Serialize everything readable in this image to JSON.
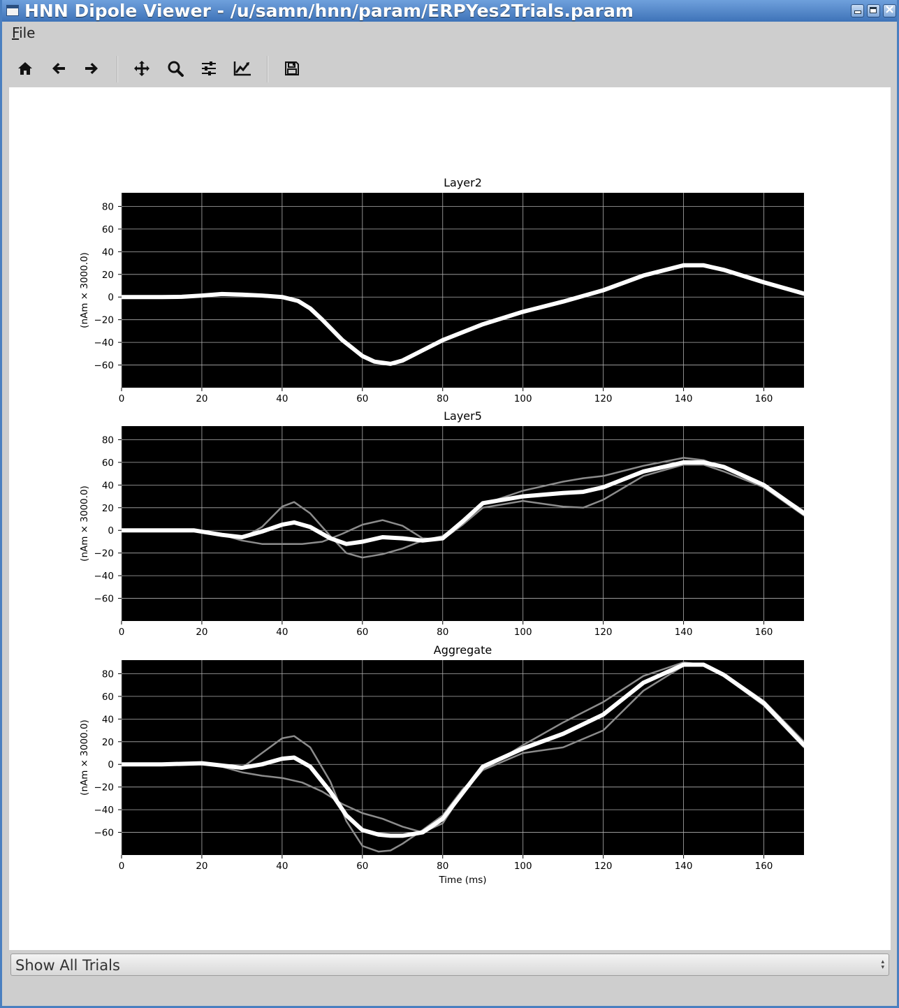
{
  "window": {
    "title": "HNN Dipole Viewer - /u/samn/hnn/param/ERPYes2Trials.param"
  },
  "menu": {
    "file_label": "File"
  },
  "toolbar": {
    "icons": [
      "home-icon",
      "back-arrow-icon",
      "forward-arrow-icon",
      "pan-icon",
      "zoom-icon",
      "configure-subplots-icon",
      "edit-axes-icon",
      "save-icon"
    ]
  },
  "trial_select": {
    "selected": "Show All Trials"
  },
  "chart_data": [
    {
      "type": "line",
      "title": "Layer2",
      "ylabel": "(nAm × 3000.0)",
      "xlabel": "",
      "xlim": [
        0,
        170
      ],
      "ylim": [
        -80,
        92
      ],
      "xticks": [
        0,
        20,
        40,
        60,
        80,
        100,
        120,
        140,
        160
      ],
      "yticks": [
        -60,
        -40,
        -20,
        0,
        20,
        40,
        60,
        80
      ],
      "grid": true,
      "background": "#000000",
      "series": [
        {
          "color": "#ffffff",
          "role": "average",
          "x": [
            0,
            10,
            15,
            20,
            25,
            30,
            35,
            40,
            44,
            47,
            50,
            55,
            60,
            63,
            67,
            70,
            75,
            80,
            90,
            100,
            110,
            115,
            120,
            130,
            140,
            145,
            150,
            160,
            170
          ],
          "y": [
            0,
            0,
            0.2,
            1.3,
            2.7,
            2.2,
            1.3,
            0,
            -3.5,
            -10,
            -20,
            -38,
            -52,
            -57,
            -59,
            -56,
            -47,
            -38,
            -24,
            -13,
            -4,
            1,
            6,
            19,
            28,
            28,
            24,
            13,
            3
          ]
        }
      ]
    },
    {
      "type": "line",
      "title": "Layer5",
      "ylabel": "(nAm × 3000.0)",
      "xlabel": "",
      "xlim": [
        0,
        170
      ],
      "ylim": [
        -80,
        92
      ],
      "xticks": [
        0,
        20,
        40,
        60,
        80,
        100,
        120,
        140,
        160
      ],
      "yticks": [
        -60,
        -40,
        -20,
        0,
        20,
        40,
        60,
        80
      ],
      "grid": true,
      "background": "#000000",
      "series": [
        {
          "color": "#8c8c8c",
          "role": "trial",
          "x": [
            0,
            10,
            18,
            25,
            30,
            35,
            40,
            43,
            47,
            52,
            56,
            60,
            65,
            70,
            75,
            80,
            85,
            90,
            100,
            110,
            115,
            120,
            130,
            140,
            145,
            150,
            160,
            170
          ],
          "y": [
            0,
            0,
            0,
            -4,
            -7,
            3,
            21,
            25,
            15,
            -5,
            -20,
            -24,
            -21,
            -16,
            -9,
            -5,
            8,
            23,
            35,
            43,
            46,
            48,
            57,
            64,
            62,
            55,
            40,
            17
          ]
        },
        {
          "color": "#8c8c8c",
          "role": "trial",
          "x": [
            0,
            10,
            18,
            25,
            30,
            35,
            40,
            45,
            50,
            55,
            60,
            65,
            70,
            75,
            80,
            85,
            90,
            100,
            110,
            115,
            120,
            130,
            140,
            145,
            150,
            160,
            170
          ],
          "y": [
            0,
            0,
            0,
            -4,
            -9,
            -12,
            -12,
            -12,
            -10,
            -3,
            5,
            9,
            4,
            -7,
            -8,
            5,
            20,
            26,
            21,
            20,
            27,
            48,
            58,
            58,
            52,
            38,
            13
          ]
        },
        {
          "color": "#ffffff",
          "role": "average",
          "x": [
            0,
            10,
            18,
            25,
            30,
            35,
            40,
            43,
            47,
            52,
            56,
            60,
            65,
            70,
            75,
            80,
            85,
            90,
            100,
            110,
            115,
            120,
            130,
            140,
            145,
            150,
            160,
            170
          ],
          "y": [
            0,
            0,
            0,
            -4,
            -6,
            -1,
            5,
            7,
            3,
            -7,
            -12,
            -10,
            -6,
            -7,
            -9,
            -7,
            8,
            24,
            30,
            33,
            34,
            38,
            52,
            60,
            60,
            56,
            40,
            15
          ]
        }
      ]
    },
    {
      "type": "line",
      "title": "Aggregate",
      "ylabel": "(nAm × 3000.0)",
      "xlabel": "Time (ms)",
      "xlim": [
        0,
        170
      ],
      "ylim": [
        -80,
        92
      ],
      "xticks": [
        0,
        20,
        40,
        60,
        80,
        100,
        120,
        140,
        160
      ],
      "yticks": [
        -60,
        -40,
        -20,
        0,
        20,
        40,
        60,
        80
      ],
      "grid": true,
      "background": "#000000",
      "series": [
        {
          "color": "#8c8c8c",
          "role": "trial",
          "x": [
            0,
            10,
            20,
            25,
            30,
            35,
            40,
            43,
            47,
            52,
            56,
            60,
            64,
            67,
            70,
            75,
            80,
            85,
            90,
            100,
            110,
            120,
            130,
            140,
            145,
            150,
            160,
            170
          ],
          "y": [
            0,
            0,
            1,
            -2,
            -3,
            10,
            23,
            25,
            15,
            -15,
            -50,
            -72,
            -77,
            -76,
            -70,
            -58,
            -45,
            -22,
            -5,
            10,
            15,
            30,
            65,
            87,
            88,
            80,
            56,
            20
          ]
        },
        {
          "color": "#8c8c8c",
          "role": "trial",
          "x": [
            0,
            10,
            20,
            25,
            30,
            35,
            40,
            45,
            50,
            55,
            60,
            65,
            70,
            75,
            80,
            85,
            90,
            100,
            110,
            120,
            130,
            140,
            145,
            150,
            160,
            170
          ],
          "y": [
            0,
            0,
            1,
            -2,
            -7,
            -10,
            -12,
            -16,
            -24,
            -35,
            -43,
            -48,
            -55,
            -60,
            -52,
            -25,
            -5,
            17,
            37,
            55,
            78,
            90,
            88,
            78,
            52,
            15
          ]
        },
        {
          "color": "#ffffff",
          "role": "average",
          "x": [
            0,
            10,
            20,
            25,
            30,
            35,
            40,
            43,
            47,
            52,
            56,
            60,
            64,
            67,
            70,
            75,
            80,
            85,
            90,
            100,
            110,
            120,
            130,
            140,
            145,
            150,
            160,
            170
          ],
          "y": [
            0,
            0,
            1,
            -1,
            -3,
            0,
            5,
            6,
            -2,
            -24,
            -45,
            -58,
            -62,
            -63,
            -63,
            -60,
            -48,
            -25,
            -2,
            14,
            27,
            44,
            72,
            88,
            88,
            79,
            54,
            17
          ]
        }
      ]
    }
  ]
}
